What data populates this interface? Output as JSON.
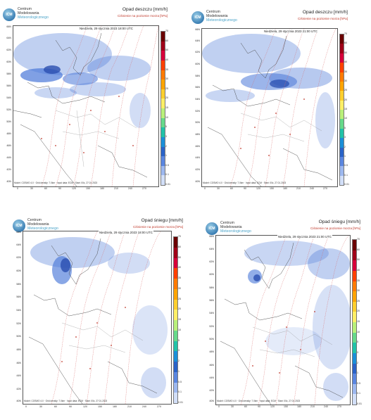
{
  "logo": {
    "line1": "Centrum",
    "line2": "Modelowania",
    "line3": "Meteorologicznego",
    "badge": "ICM"
  },
  "colorbar": {
    "labels": [
      "70",
      "60",
      "50",
      "40",
      "35",
      "30",
      "25",
      "20",
      "15",
      "10",
      "5",
      "3",
      "2",
      "1",
      "0.5",
      "0.1",
      "0.01"
    ],
    "colors": [
      "#6b0000",
      "#a00018",
      "#d7003a",
      "#ff4000",
      "#ff7a00",
      "#ffa400",
      "#ffcf2e",
      "#ffef66",
      "#b9f07a",
      "#66d98a",
      "#21c2a8",
      "#1a8fd8",
      "#2a63c8",
      "#5a86e0",
      "#9db8ef",
      "#d2dff8"
    ]
  },
  "lat_labels": [
    "66N",
    "64N",
    "62N",
    "60N",
    "58N",
    "56N",
    "54N",
    "52N",
    "50N",
    "48N",
    "46N",
    "44N",
    "42N",
    "40N"
  ],
  "lon_labels": [
    "0",
    "30",
    "60",
    "90",
    "120",
    "150",
    "180",
    "210",
    "240",
    "270"
  ],
  "panels": [
    {
      "title": "Opad deszczu [mm/h]",
      "subtitle": "Ciśnienie na poziomie morza [hPa]",
      "date": "Niedziela, 29 stycznia 2023 18:00 UTC",
      "footer": "Model: COSMO 4.0 · Grid density: 7.0km · Input data: ECM · Start: 00z, 27.01.2023"
    },
    {
      "title": "Opad deszczu [mm/h]",
      "subtitle": "Ciśnienie na poziomie morza [hPa]",
      "date": "Niedziela, 29 stycznia 2023 21:00 UTC",
      "footer": "Model: COSMO 4.0 · Grid density: 7.0km · Input data: ECM · Start: 00z, 27.01.2023"
    },
    {
      "title": "Opad śniegu [mm/h]",
      "subtitle": "Ciśnienie na poziomie morza [hPa]",
      "date": "Niedziela, 29 stycznia 2023 18:00 UTC",
      "footer": "Model: COSMO 4.0 · Grid density: 7.0km · Input data: ECM · Start: 00z, 27.01.2023"
    },
    {
      "title": "Opad śniegu [mm/h]",
      "subtitle": "Ciśnienie na poziomie morza [hPa]",
      "date": "Niedziela, 29 stycznia 2023 21:00 UTC",
      "footer": "Model: COSMO 4.0 · Grid density: 7.0km · Input data: ECM · Start: 00z, 27.01.2023"
    }
  ]
}
